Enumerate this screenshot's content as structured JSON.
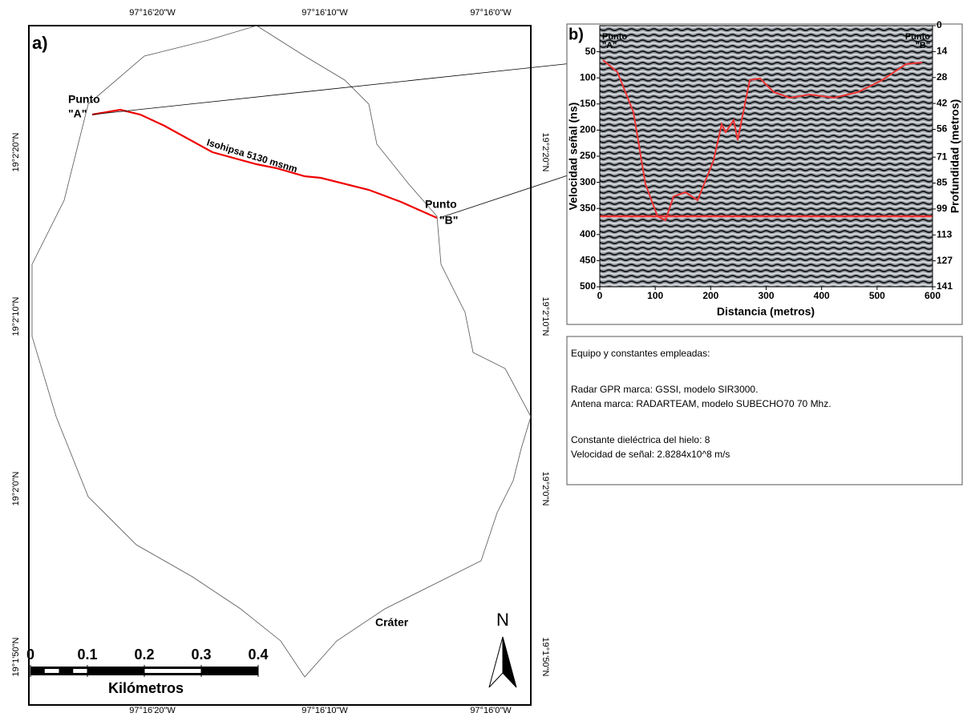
{
  "map": {
    "panel_label": "a)",
    "lon_labels": [
      "97°16'20\"W",
      "97°16'10\"W",
      "97°16'0\"W"
    ],
    "lat_labels": [
      "19°2'20\"N",
      "19°2'10\"N",
      "19°2'0\"N",
      "19°1'50\"N"
    ],
    "point_a": {
      "line1": "Punto",
      "line2": "\"A\""
    },
    "point_b": {
      "line1": "Punto",
      "line2": "\"B\""
    },
    "contour_label": "Isohipsa 5130 msnm",
    "crater_label": "Cráter",
    "north_label": "N",
    "scale": {
      "ticks": [
        0,
        0.1,
        0.2,
        0.3,
        0.4
      ],
      "unit": "Kilómetros"
    }
  },
  "radargram": {
    "panel_label": "b)",
    "point_a": {
      "line1": "Punto",
      "line2": "\"A\""
    },
    "point_b": {
      "line1": "Punto",
      "line2": "\"B\""
    },
    "y_label": "Velocidad señal (ns)",
    "y2_label": "Profundidad (metros)",
    "x_label": "Distancia (metros)",
    "xlim": [
      0,
      600
    ],
    "xticks": [
      0,
      100,
      200,
      300,
      400,
      500,
      600
    ],
    "ylim": [
      0,
      500
    ],
    "yticks": [
      50,
      100,
      150,
      200,
      250,
      300,
      350,
      400,
      450,
      500
    ],
    "y2lim": [
      0,
      141
    ],
    "y2ticks": [
      0,
      14,
      28,
      42,
      56,
      71,
      85,
      99,
      113,
      127,
      141
    ]
  },
  "info": {
    "lines": [
      "Equipo y constantes empleadas:",
      "Radar GPR marca: GSSI, modelo SIR3000.",
      "Antena marca: RADARTEAM, modelo SUBECHO70 70 Mhz.",
      "Constante dieléctrica del hielo: 8",
      "Velocidad de señal: 2.8284x10^8 m/s"
    ]
  }
}
